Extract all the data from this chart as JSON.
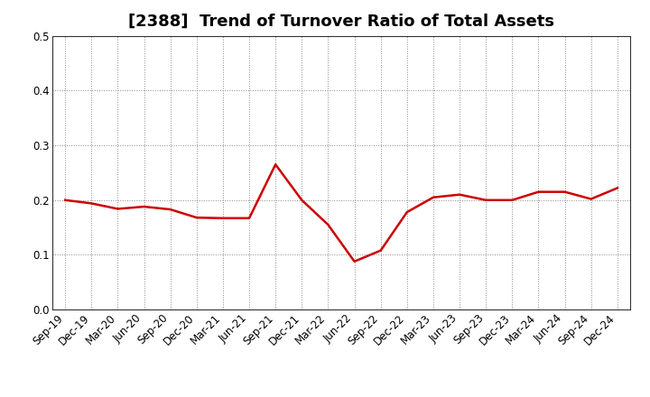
{
  "title": "[2388]  Trend of Turnover Ratio of Total Assets",
  "x_labels": [
    "Sep-19",
    "Dec-19",
    "Mar-20",
    "Jun-20",
    "Sep-20",
    "Dec-20",
    "Mar-21",
    "Jun-21",
    "Sep-21",
    "Dec-21",
    "Mar-22",
    "Jun-22",
    "Sep-22",
    "Dec-22",
    "Mar-23",
    "Jun-23",
    "Sep-23",
    "Dec-23",
    "Mar-24",
    "Jun-24",
    "Sep-24",
    "Dec-24"
  ],
  "y_values": [
    0.2,
    0.194,
    0.184,
    0.188,
    0.183,
    0.168,
    0.167,
    0.167,
    0.265,
    0.2,
    0.155,
    0.088,
    0.108,
    0.178,
    0.205,
    0.21,
    0.2,
    0.2,
    0.215,
    0.215,
    0.202,
    0.222
  ],
  "line_color": "#cc0000",
  "line_width": 1.8,
  "ylim": [
    0.0,
    0.5
  ],
  "yticks": [
    0.0,
    0.1,
    0.2,
    0.3,
    0.4,
    0.5
  ],
  "grid_color": "#888888",
  "background_color": "#ffffff",
  "title_fontsize": 13,
  "tick_fontsize": 8.5
}
